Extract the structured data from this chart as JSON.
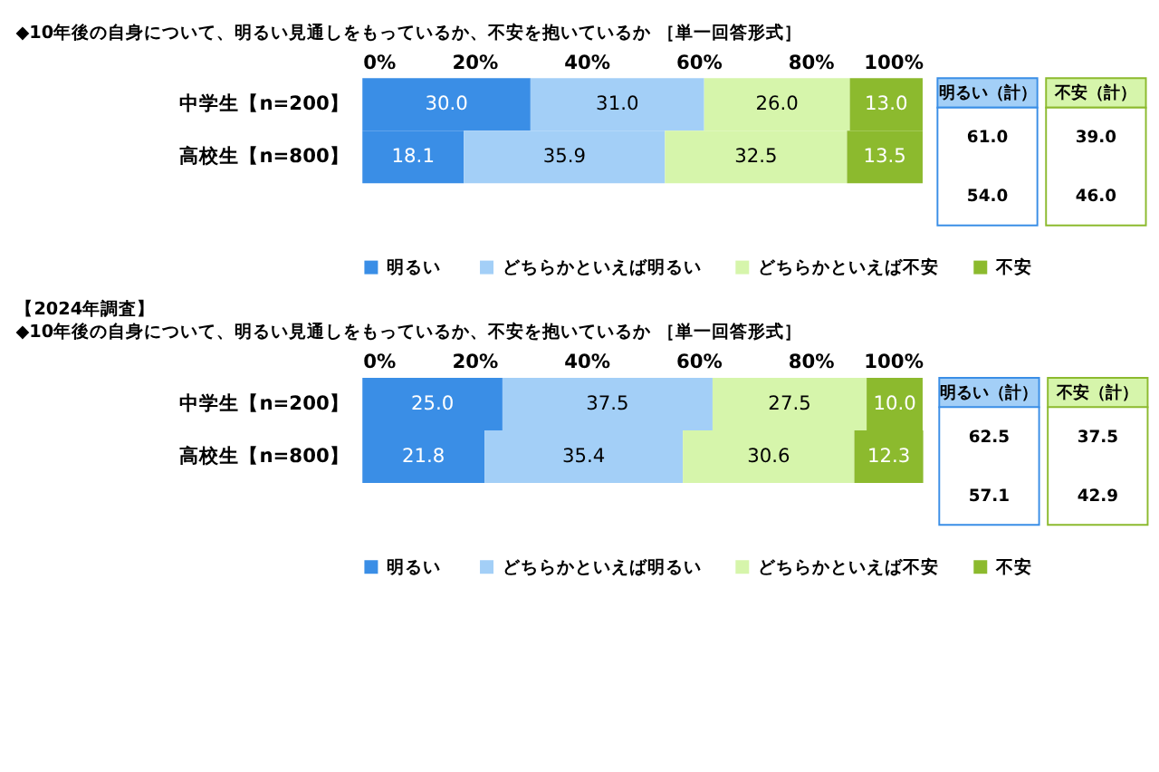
{
  "chart_data": [
    {
      "type": "bar",
      "orientation": "horizontal",
      "stacked": true,
      "title": "◆10年後の自身について、明るい見通しをもっているか、不安を抱いているか ［単一回答形式］",
      "categories": [
        "中学生【n=200】",
        "高校生【n=800】"
      ],
      "series": [
        {
          "name": "明るい",
          "color": "#3a8ee6",
          "values": [
            30.0,
            18.1
          ],
          "value_labels": [
            "30.0",
            "18.1"
          ]
        },
        {
          "name": "どちらかといえば明るい",
          "color": "#a3cff7",
          "values": [
            31.0,
            35.9
          ],
          "value_labels": [
            "31.0",
            "35.9"
          ]
        },
        {
          "name": "どちらかといえば不安",
          "color": "#d6f5ab",
          "values": [
            26.0,
            32.5
          ],
          "value_labels": [
            "26.0",
            "32.5"
          ]
        },
        {
          "name": "不安",
          "color": "#8cba2e",
          "values": [
            13.0,
            13.5
          ],
          "value_labels": [
            "13.0",
            "13.5"
          ]
        }
      ],
      "xlim": [
        0,
        100
      ],
      "xticks": [
        {
          "value": 0,
          "label": "0%"
        },
        {
          "value": 20,
          "label": "20%"
        },
        {
          "value": 40,
          "label": "40%"
        },
        {
          "value": 60,
          "label": "60%"
        },
        {
          "value": 80,
          "label": "80%"
        },
        {
          "value": 100,
          "label": "100%"
        }
      ],
      "legend": "bottom",
      "grid": false,
      "annotations": [
        "明るい（計）",
        "不安（計）",
        "61.0",
        "39.0",
        "54.0",
        "46.0"
      ]
    },
    {
      "type": "bar",
      "orientation": "horizontal",
      "stacked": true,
      "title": "【2024年調査】",
      "subtitle": "◆10年後の自身について、明るい見通しをもっているか、不安を抱いているか ［単一回答形式］",
      "categories": [
        "中学生【n=200】",
        "高校生【n=800】"
      ],
      "series": [
        {
          "name": "明るい",
          "color": "#3a8ee6",
          "values": [
            25.0,
            21.8
          ],
          "value_labels": [
            "25.0",
            "21.8"
          ]
        },
        {
          "name": "どちらかといえば明るい",
          "color": "#a3cff7",
          "values": [
            37.5,
            35.4
          ],
          "value_labels": [
            "37.5",
            "35.4"
          ]
        },
        {
          "name": "どちらかといえば不安",
          "color": "#d6f5ab",
          "values": [
            27.5,
            30.6
          ],
          "value_labels": [
            "27.5",
            "30.6"
          ]
        },
        {
          "name": "不安",
          "color": "#8cba2e",
          "values": [
            10.0,
            12.3
          ],
          "value_labels": [
            "10.0",
            "12.3"
          ]
        }
      ],
      "xlim": [
        0,
        100
      ],
      "xticks": [
        {
          "value": 0,
          "label": "0%"
        },
        {
          "value": 20,
          "label": "20%"
        },
        {
          "value": 40,
          "label": "40%"
        },
        {
          "value": 60,
          "label": "60%"
        },
        {
          "value": 80,
          "label": "80%"
        },
        {
          "value": 100,
          "label": "100%"
        }
      ],
      "legend": "bottom",
      "grid": false,
      "annotations": [
        "明るい（計）",
        "不安（計）",
        "62.5",
        "37.5",
        "57.1",
        "42.9"
      ]
    }
  ]
}
